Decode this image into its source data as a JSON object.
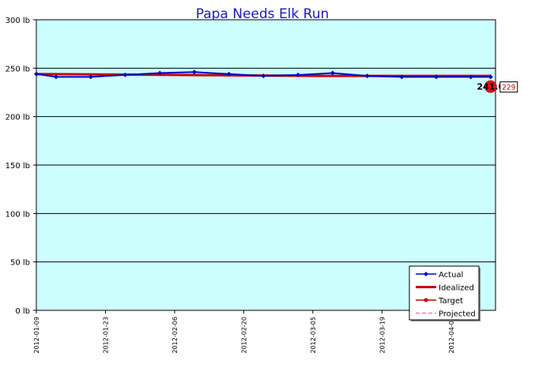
{
  "chart_data": {
    "type": "line",
    "title": "Papa Needs Elk Run",
    "yunit": "lb",
    "ylim": [
      0,
      300
    ],
    "yticks": [
      "0 lb",
      "50 lb",
      "100 lb",
      "150 lb",
      "200 lb",
      "250 lb",
      "300 lb"
    ],
    "xlim": [
      "2012-01-09",
      "2012-04-11"
    ],
    "xticks": [
      "2012-01-09",
      "2012-01-23",
      "2012-02-06",
      "2012-02-20",
      "2012-03-05",
      "2012-03-19",
      "2012-04-02"
    ],
    "grid": true,
    "legend_position": "bottom-right",
    "series": [
      {
        "name": "Actual",
        "color": "#0000cc",
        "marker": "diamond",
        "points": [
          {
            "x": "2012-01-09",
            "y": 244
          },
          {
            "x": "2012-01-13",
            "y": 241
          },
          {
            "x": "2012-01-20",
            "y": 241
          },
          {
            "x": "2012-01-27",
            "y": 243
          },
          {
            "x": "2012-02-03",
            "y": 245
          },
          {
            "x": "2012-02-10",
            "y": 246
          },
          {
            "x": "2012-02-17",
            "y": 244
          },
          {
            "x": "2012-02-24",
            "y": 242
          },
          {
            "x": "2012-03-02",
            "y": 243
          },
          {
            "x": "2012-03-09",
            "y": 245
          },
          {
            "x": "2012-03-16",
            "y": 242
          },
          {
            "x": "2012-03-23",
            "y": 241
          },
          {
            "x": "2012-03-30",
            "y": 241
          },
          {
            "x": "2012-04-06",
            "y": 241
          },
          {
            "x": "2012-04-10",
            "y": 241
          }
        ]
      },
      {
        "name": "Idealized",
        "color": "#cc0000",
        "marker": "none",
        "points": [
          {
            "x": "2012-01-09",
            "y": 244
          },
          {
            "x": "2012-02-06",
            "y": 243
          },
          {
            "x": "2012-03-05",
            "y": 242
          },
          {
            "x": "2012-04-10",
            "y": 242
          }
        ]
      },
      {
        "name": "Target",
        "color": "#cc0000",
        "marker": "circle",
        "points": []
      },
      {
        "name": "Projected",
        "color": "#ff66aa",
        "dashed": true,
        "marker": "none",
        "points": []
      }
    ],
    "callout": {
      "value_label": "241.0",
      "box_label": "229",
      "x": "2012-04-10",
      "y": 231,
      "color": "#dd1111"
    },
    "colors": {
      "plot_background": "#ccffff",
      "grid": "#000000",
      "title": "#1a1ab8"
    }
  }
}
